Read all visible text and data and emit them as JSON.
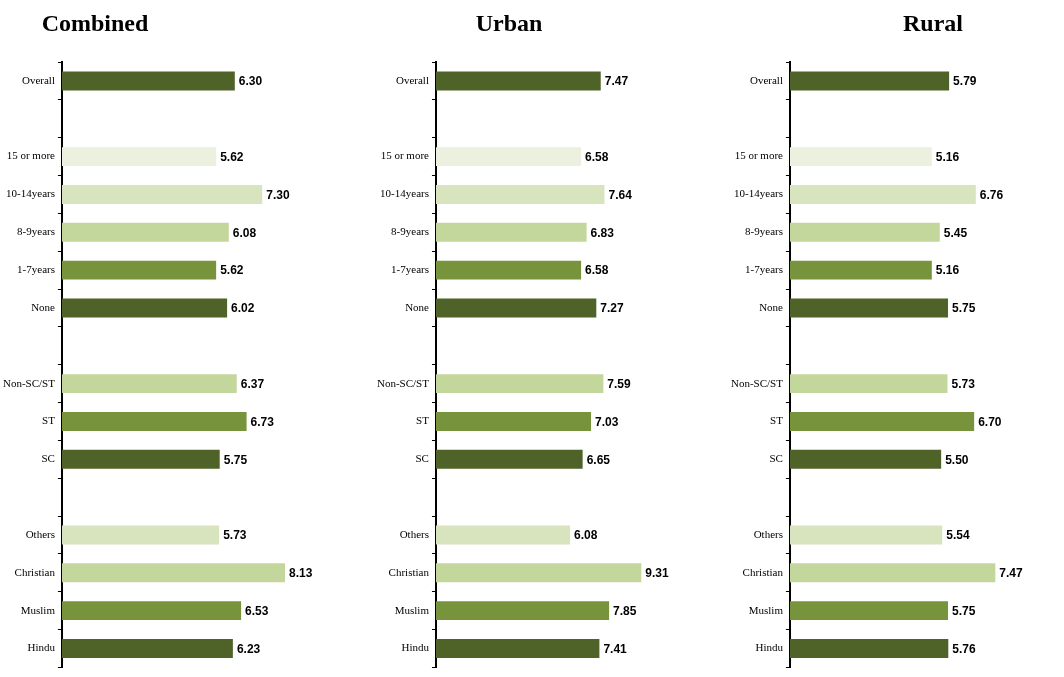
{
  "chart_data": [
    {
      "type": "bar",
      "title": "Combined",
      "orientation": "horizontal",
      "legend": false,
      "grid": false,
      "tick_labels": "y",
      "categories": [
        "Overall",
        null,
        "15 or more",
        "10-14years",
        "8-9years",
        "1-7years",
        "None",
        null,
        "Non-SC/ST",
        "ST",
        "SC",
        null,
        "Others",
        "Christian",
        "Muslim",
        "Hindu"
      ],
      "values": [
        6.3,
        null,
        5.62,
        7.3,
        6.08,
        5.62,
        6.02,
        null,
        6.37,
        6.73,
        5.75,
        null,
        5.73,
        8.13,
        6.53,
        6.23
      ],
      "value_labels": [
        "6.30",
        null,
        "5.62",
        "7.30",
        "6.08",
        "5.62",
        "6.02",
        null,
        "6.37",
        "6.73",
        "5.75",
        null,
        "5.73",
        "8.13",
        "6.53",
        "6.23"
      ],
      "colors": [
        "#4f6228",
        null,
        "#ebf1de",
        "#d7e4bd",
        "#c3d69b",
        "#77933c",
        "#4f6228",
        null,
        "#c3d69b",
        "#77933c",
        "#4f6228",
        null,
        "#d7e4bd",
        "#c3d69b",
        "#77933c",
        "#4f6228"
      ]
    },
    {
      "type": "bar",
      "title": "Urban",
      "orientation": "horizontal",
      "legend": false,
      "grid": false,
      "tick_labels": "y",
      "categories": [
        "Overall",
        null,
        "15 or more",
        "10-14years",
        "8-9years",
        "1-7years",
        "None",
        null,
        "Non-SC/ST",
        "ST",
        "SC",
        null,
        "Others",
        "Christian",
        "Muslim",
        "Hindu"
      ],
      "values": [
        7.47,
        null,
        6.58,
        7.64,
        6.83,
        6.58,
        7.27,
        null,
        7.59,
        7.03,
        6.65,
        null,
        6.08,
        9.31,
        7.85,
        7.41
      ],
      "value_labels": [
        "7.47",
        null,
        "6.58",
        "7.64",
        "6.83",
        "6.58",
        "7.27",
        null,
        "7.59",
        "7.03",
        "6.65",
        null,
        "6.08",
        "9.31",
        "7.85",
        "7.41"
      ],
      "colors": [
        "#4f6228",
        null,
        "#ebf1de",
        "#d7e4bd",
        "#c3d69b",
        "#77933c",
        "#4f6228",
        null,
        "#c3d69b",
        "#77933c",
        "#4f6228",
        null,
        "#d7e4bd",
        "#c3d69b",
        "#77933c",
        "#4f6228"
      ]
    },
    {
      "type": "bar",
      "title": "Rural",
      "orientation": "horizontal",
      "legend": false,
      "grid": false,
      "tick_labels": "y",
      "categories": [
        "Overall",
        null,
        "15 or more",
        "10-14years",
        "8-9years",
        "1-7years",
        "None",
        null,
        "Non-SC/ST",
        "ST",
        "SC",
        null,
        "Others",
        "Christian",
        "Muslim",
        "Hindu"
      ],
      "values": [
        5.79,
        null,
        5.16,
        6.76,
        5.45,
        5.16,
        5.75,
        null,
        5.73,
        6.7,
        5.5,
        null,
        5.54,
        7.47,
        5.75,
        5.76
      ],
      "value_labels": [
        "5.79",
        null,
        "5.16",
        "6.76",
        "5.45",
        "5.16",
        "5.75",
        null,
        "5.73",
        "6.70",
        "5.50",
        null,
        "5.54",
        "7.47",
        "5.75",
        "5.76"
      ],
      "colors": [
        "#4f6228",
        null,
        "#ebf1de",
        "#d7e4bd",
        "#c3d69b",
        "#77933c",
        "#4f6228",
        null,
        "#c3d69b",
        "#77933c",
        "#4f6228",
        null,
        "#d7e4bd",
        "#c3d69b",
        "#77933c",
        "#4f6228"
      ]
    }
  ]
}
